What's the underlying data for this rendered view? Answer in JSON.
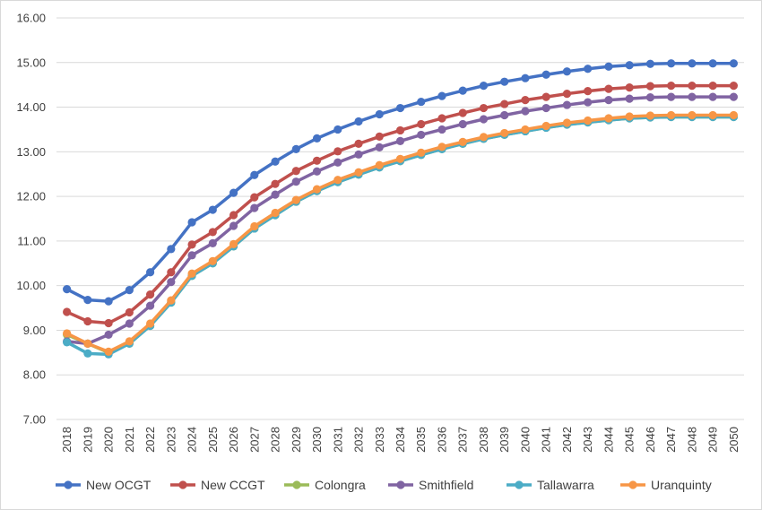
{
  "chart_data": {
    "type": "line",
    "title": "",
    "xlabel": "",
    "ylabel": "",
    "ylim": [
      7.0,
      16.0
    ],
    "yticks": [
      "7.00",
      "8.00",
      "9.00",
      "10.00",
      "11.00",
      "12.00",
      "13.00",
      "14.00",
      "15.00",
      "16.00"
    ],
    "grid": true,
    "legend": "bottom",
    "x": [
      "2018",
      "2019",
      "2020",
      "2021",
      "2022",
      "2023",
      "2024",
      "2025",
      "2026",
      "2027",
      "2028",
      "2029",
      "2030",
      "2031",
      "2032",
      "2033",
      "2034",
      "2035",
      "2036",
      "2037",
      "2038",
      "2039",
      "2040",
      "2041",
      "2042",
      "2043",
      "2044",
      "2045",
      "2046",
      "2047",
      "2048",
      "2049",
      "2050"
    ],
    "series": [
      {
        "name": "New OCGT",
        "color": "#4472c4",
        "values": [
          9.92,
          9.68,
          9.65,
          9.9,
          10.3,
          10.82,
          11.42,
          11.7,
          12.08,
          12.48,
          12.78,
          13.06,
          13.3,
          13.5,
          13.68,
          13.84,
          13.98,
          14.12,
          14.25,
          14.37,
          14.48,
          14.57,
          14.65,
          14.73,
          14.8,
          14.86,
          14.91,
          14.94,
          14.97,
          14.98,
          14.98,
          14.98,
          14.98
        ]
      },
      {
        "name": "New CCGT",
        "color": "#c0504d",
        "values": [
          9.41,
          9.2,
          9.16,
          9.4,
          9.8,
          10.3,
          10.92,
          11.2,
          11.58,
          11.98,
          12.28,
          12.57,
          12.8,
          13.01,
          13.18,
          13.34,
          13.48,
          13.62,
          13.75,
          13.87,
          13.98,
          14.07,
          14.16,
          14.23,
          14.3,
          14.36,
          14.41,
          14.44,
          14.47,
          14.48,
          14.48,
          14.48,
          14.48
        ]
      },
      {
        "name": "Colongra",
        "color": "#9bbb59",
        "values": [
          8.9,
          8.7,
          8.5,
          8.7,
          9.1,
          9.62,
          10.22,
          10.5,
          10.88,
          11.28,
          11.58,
          11.88,
          12.12,
          12.32,
          12.49,
          12.65,
          12.79,
          12.93,
          13.06,
          13.18,
          13.29,
          13.38,
          13.46,
          13.54,
          13.61,
          13.66,
          13.71,
          13.75,
          13.77,
          13.78,
          13.78,
          13.78,
          13.78
        ]
      },
      {
        "name": "Smithfield",
        "color": "#8064a2",
        "values": [
          8.75,
          8.7,
          8.9,
          9.15,
          9.55,
          10.08,
          10.68,
          10.95,
          11.34,
          11.74,
          12.04,
          12.33,
          12.56,
          12.76,
          12.94,
          13.1,
          13.24,
          13.38,
          13.5,
          13.62,
          13.73,
          13.82,
          13.91,
          13.98,
          14.05,
          14.11,
          14.16,
          14.19,
          14.22,
          14.23,
          14.23,
          14.23,
          14.23
        ]
      },
      {
        "name": "Tallawarra",
        "color": "#4bacc6",
        "values": [
          8.73,
          8.48,
          8.46,
          8.7,
          9.1,
          9.62,
          10.22,
          10.5,
          10.88,
          11.28,
          11.58,
          11.88,
          12.12,
          12.32,
          12.49,
          12.65,
          12.79,
          12.93,
          13.06,
          13.18,
          13.29,
          13.38,
          13.46,
          13.54,
          13.61,
          13.66,
          13.71,
          13.75,
          13.77,
          13.78,
          13.78,
          13.78,
          13.78
        ]
      },
      {
        "name": "Uranquinty",
        "color": "#f79646",
        "values": [
          8.93,
          8.7,
          8.52,
          8.75,
          9.15,
          9.67,
          10.27,
          10.55,
          10.93,
          11.33,
          11.63,
          11.92,
          12.16,
          12.37,
          12.54,
          12.7,
          12.84,
          12.98,
          13.11,
          13.22,
          13.33,
          13.42,
          13.5,
          13.58,
          13.65,
          13.7,
          13.75,
          13.79,
          13.81,
          13.82,
          13.82,
          13.82,
          13.82
        ]
      }
    ]
  }
}
